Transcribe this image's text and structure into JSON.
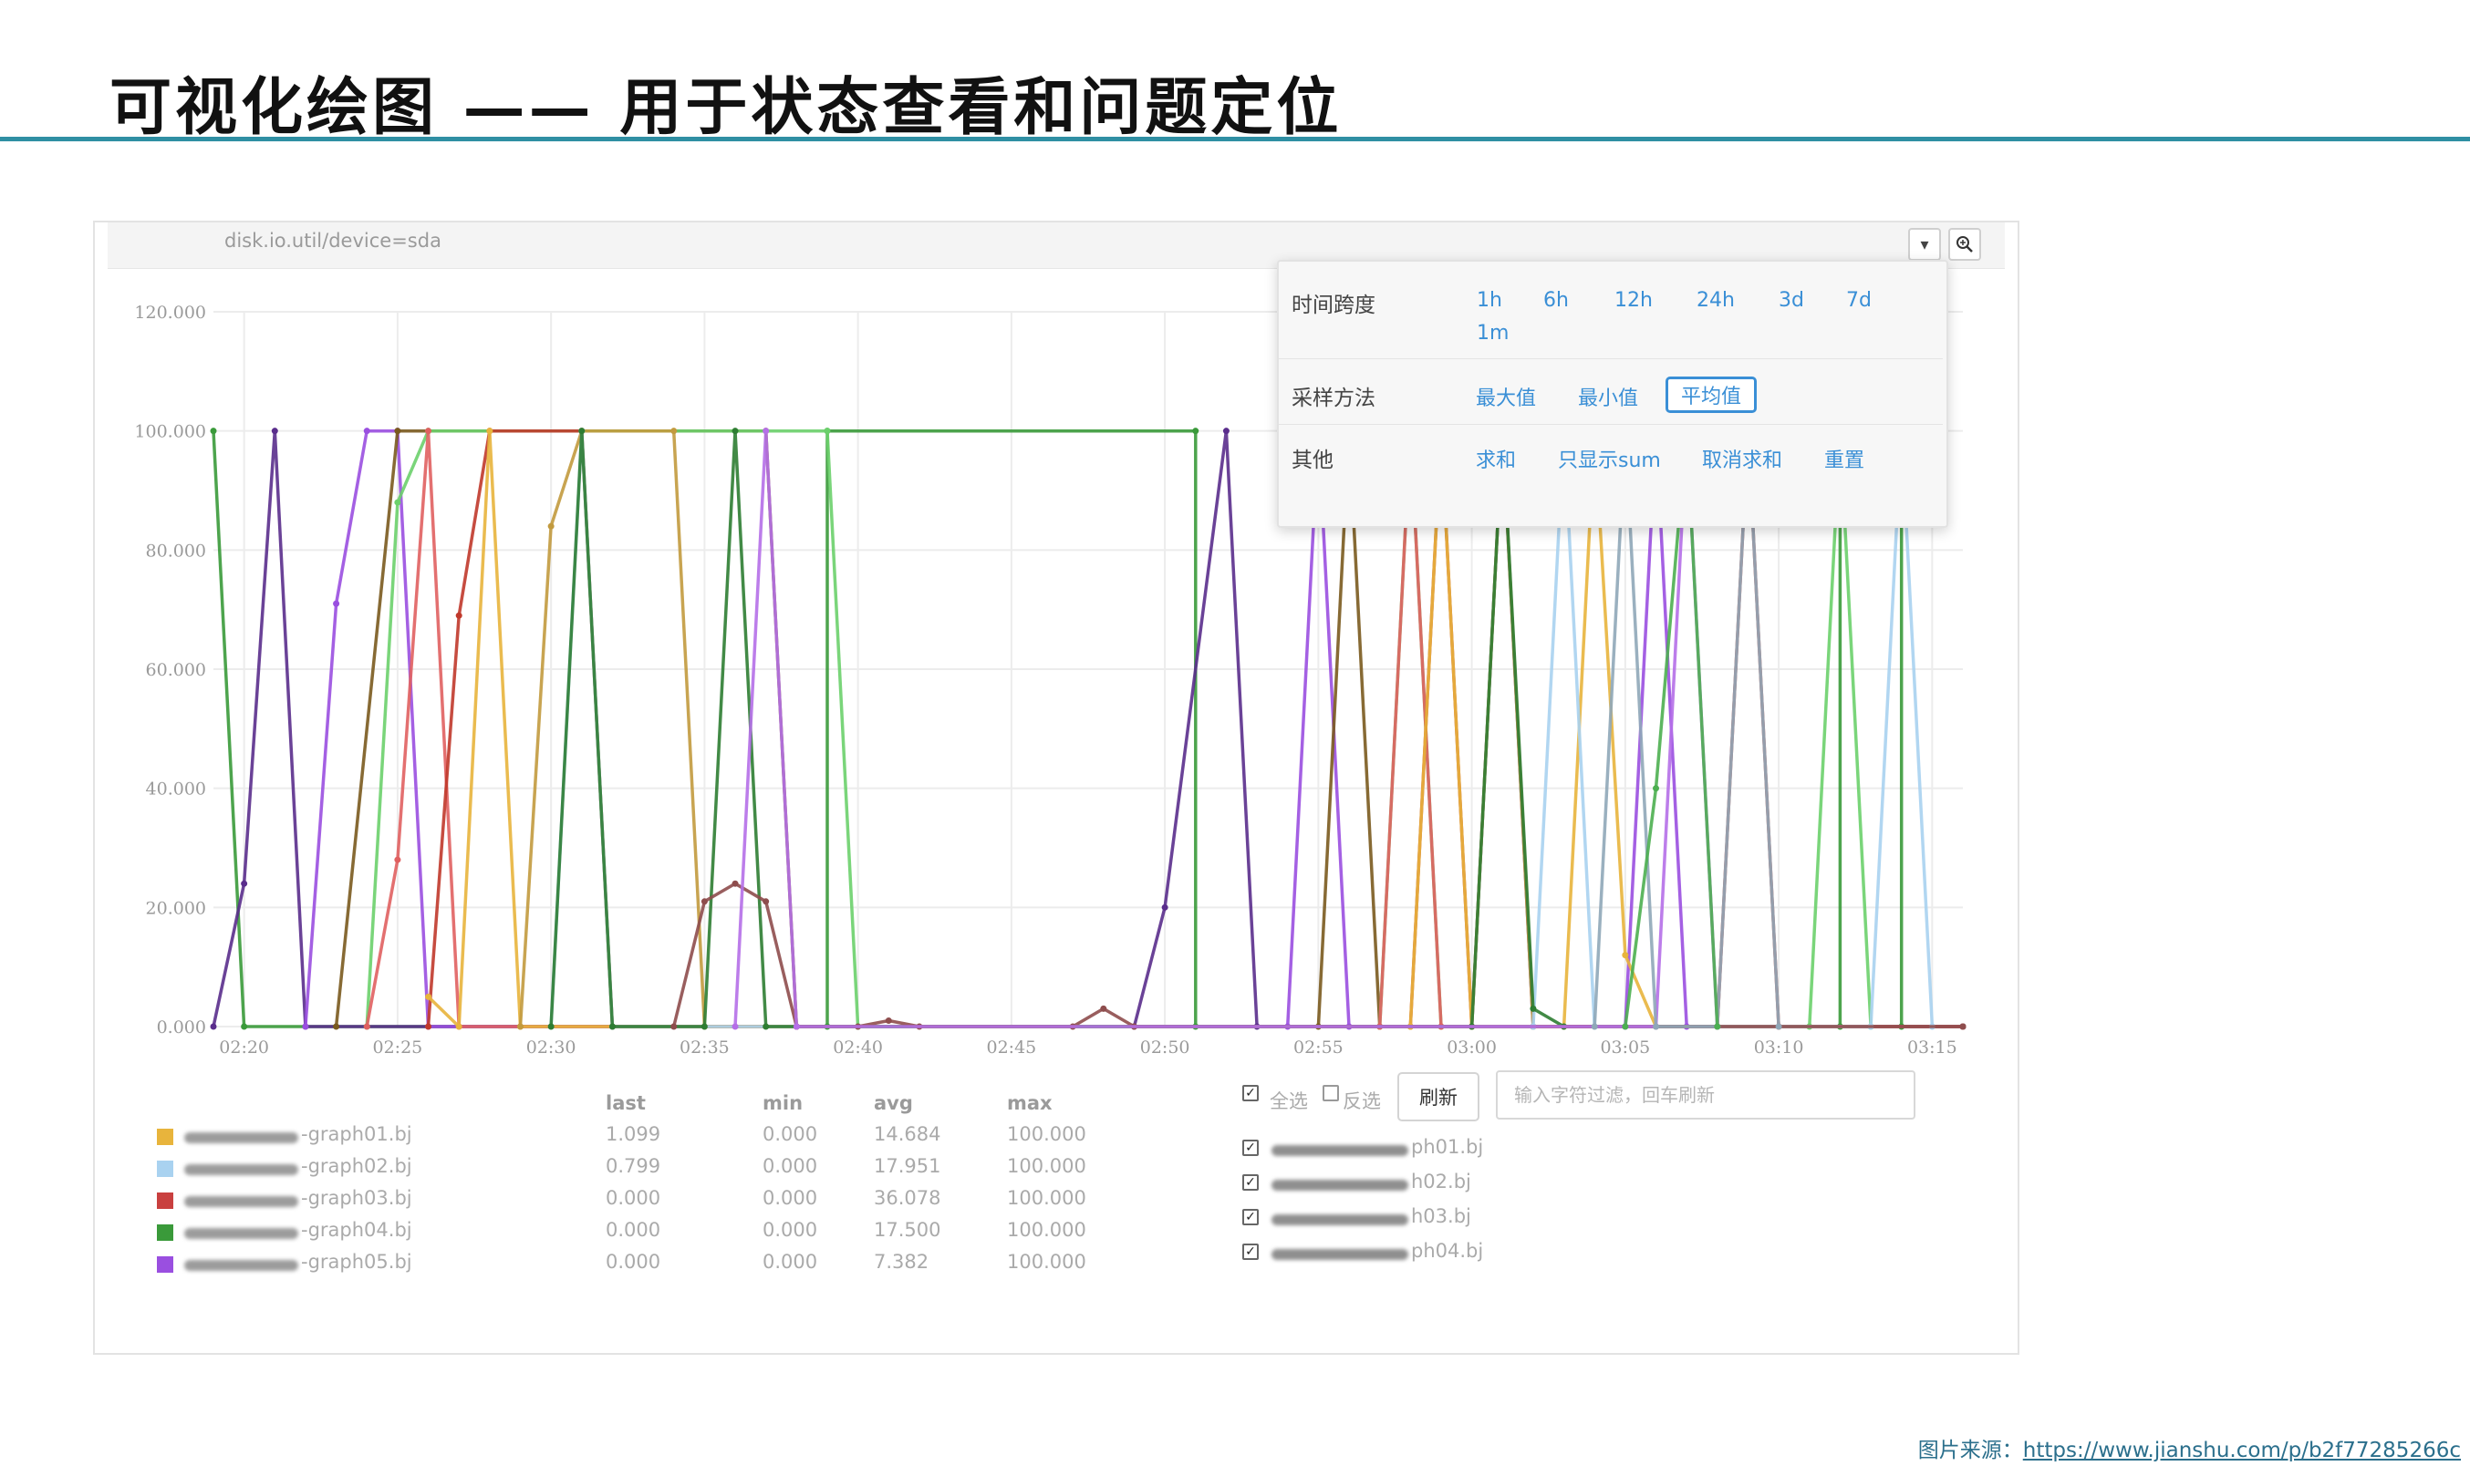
{
  "slide": {
    "title": "可视化绘图 —— 用于状态查看和问题定位"
  },
  "panel": {
    "metric": "disk.io.util/device=sda"
  },
  "popup": {
    "time_span_label": "时间跨度",
    "time_spans": [
      "1h",
      "6h",
      "12h",
      "24h",
      "3d",
      "7d",
      "1m"
    ],
    "sampling_label": "采样方法",
    "sampling": [
      "最大值",
      "最小值",
      "平均值"
    ],
    "sampling_active": "平均值",
    "other_label": "其他",
    "others": [
      "求和",
      "只显示sum",
      "取消求和",
      "重置"
    ]
  },
  "legend": {
    "headers": {
      "last": "last",
      "min": "min",
      "avg": "avg",
      "max": "max"
    },
    "rows": [
      {
        "name": "-graph01.bj",
        "color": "#e8b43c",
        "last": "1.099",
        "min": "0.000",
        "avg": "14.684",
        "max": "100.000"
      },
      {
        "name": "-graph02.bj",
        "color": "#a9d2f0",
        "last": "0.799",
        "min": "0.000",
        "avg": "17.951",
        "max": "100.000"
      },
      {
        "name": "-graph03.bj",
        "color": "#c9403f",
        "last": "0.000",
        "min": "0.000",
        "avg": "36.078",
        "max": "100.000"
      },
      {
        "name": "-graph04.bj",
        "color": "#3a9a3a",
        "last": "0.000",
        "min": "0.000",
        "avg": "17.500",
        "max": "100.000"
      },
      {
        "name": "-graph05.bj",
        "color": "#9a4fe0",
        "last": "0.000",
        "min": "0.000",
        "avg": "7.382",
        "max": "100.000"
      }
    ]
  },
  "filter": {
    "select_all": "全选",
    "invert": "反选",
    "refresh": "刷新",
    "placeholder": "输入字符过滤，回车刷新",
    "hosts": [
      "ph01.bj",
      "h02.bj",
      "h03.bj",
      "ph04.bj"
    ]
  },
  "source": {
    "label": "图片来源：",
    "url": "https://www.jianshu.com/p/b2f77285266c"
  },
  "chart_data": {
    "type": "line",
    "ylim": [
      0,
      120
    ],
    "y_ticks": [
      "120.000",
      "100.000",
      "80.000",
      "60.000",
      "40.000",
      "20.000",
      "0.000"
    ],
    "x_ticks": [
      "02:20",
      "02:25",
      "02:30",
      "02:35",
      "02:40",
      "02:45",
      "02:50",
      "02:55",
      "03:00",
      "03:05",
      "03:10",
      "03:15"
    ],
    "series": [
      {
        "color": "#3a9a3a",
        "points": [
          [
            "02:19",
            100
          ],
          [
            "02:20",
            0
          ],
          [
            "02:39",
            0
          ],
          [
            "02:39",
            100
          ],
          [
            "02:51",
            100
          ],
          [
            "02:51",
            0
          ],
          [
            "03:12",
            0
          ],
          [
            "03:12",
            100
          ],
          [
            "03:14",
            100
          ],
          [
            "03:14",
            0
          ],
          [
            "03:16",
            0
          ]
        ]
      },
      {
        "color": "#5a2d8c",
        "points": [
          [
            "02:19",
            0
          ],
          [
            "02:20",
            24
          ],
          [
            "02:21",
            100
          ],
          [
            "02:22",
            0
          ],
          [
            "02:49",
            0
          ],
          [
            "02:50",
            20
          ],
          [
            "02:52",
            100
          ],
          [
            "02:53",
            0
          ],
          [
            "03:00",
            0
          ],
          [
            "03:01",
            100
          ],
          [
            "03:02",
            0
          ],
          [
            "03:16",
            0
          ]
        ]
      },
      {
        "color": "#9a4fe0",
        "points": [
          [
            "02:22",
            0
          ],
          [
            "02:23",
            71
          ],
          [
            "02:24",
            100
          ],
          [
            "02:25",
            100
          ],
          [
            "02:26",
            0
          ],
          [
            "02:54",
            0
          ],
          [
            "02:55",
            100
          ],
          [
            "02:56",
            0
          ],
          [
            "03:05",
            0
          ],
          [
            "03:06",
            100
          ],
          [
            "03:07",
            0
          ],
          [
            "03:16",
            0
          ]
        ]
      },
      {
        "color": "#7a5a1e",
        "points": [
          [
            "02:23",
            0
          ],
          [
            "02:25",
            100
          ],
          [
            "02:37",
            100
          ],
          [
            "02:38",
            0
          ],
          [
            "02:55",
            0
          ],
          [
            "02:56",
            100
          ],
          [
            "02:57",
            0
          ],
          [
            "03:16",
            0
          ]
        ]
      },
      {
        "color": "#6bd06b",
        "points": [
          [
            "02:24",
            0
          ],
          [
            "02:25",
            88
          ],
          [
            "02:26",
            100
          ],
          [
            "02:39",
            100
          ],
          [
            "02:40",
            0
          ],
          [
            "02:57",
            0
          ],
          [
            "02:58",
            100
          ],
          [
            "02:59",
            0
          ],
          [
            "03:11",
            0
          ],
          [
            "03:12",
            100
          ],
          [
            "03:13",
            0
          ]
        ]
      },
      {
        "color": "#e06060",
        "points": [
          [
            "02:24",
            0
          ],
          [
            "02:25",
            28
          ],
          [
            "02:26",
            100
          ],
          [
            "02:27",
            0
          ],
          [
            "02:57",
            0
          ],
          [
            "02:58",
            100
          ],
          [
            "02:59",
            0
          ],
          [
            "03:16",
            0
          ]
        ]
      },
      {
        "color": "#c0392b",
        "points": [
          [
            "02:26",
            0
          ],
          [
            "02:27",
            69
          ],
          [
            "02:28",
            100
          ],
          [
            "02:31",
            100
          ],
          [
            "02:32",
            0
          ],
          [
            "02:58",
            0
          ],
          [
            "02:59",
            100
          ],
          [
            "03:00",
            0
          ],
          [
            "03:08",
            0
          ],
          [
            "03:09",
            100
          ],
          [
            "03:10",
            0
          ]
        ]
      },
      {
        "color": "#e8b43c",
        "points": [
          [
            "02:26",
            5
          ],
          [
            "02:27",
            0
          ],
          [
            "02:28",
            100
          ],
          [
            "02:29",
            0
          ],
          [
            "02:58",
            0
          ],
          [
            "02:59",
            100
          ],
          [
            "03:00",
            0
          ],
          [
            "03:03",
            0
          ],
          [
            "03:04",
            100
          ],
          [
            "03:05",
            12
          ],
          [
            "03:06",
            0
          ]
        ]
      },
      {
        "color": "#c29a3e",
        "points": [
          [
            "02:29",
            0
          ],
          [
            "02:30",
            84
          ],
          [
            "02:31",
            100
          ],
          [
            "02:34",
            100
          ],
          [
            "02:35",
            0
          ],
          [
            "03:00",
            0
          ],
          [
            "03:01",
            100
          ],
          [
            "03:02",
            0
          ]
        ]
      },
      {
        "color": "#a9d2f0",
        "points": [
          [
            "02:30",
            0
          ],
          [
            "02:31",
            100
          ],
          [
            "02:32",
            0
          ],
          [
            "03:02",
            0
          ],
          [
            "03:03",
            100
          ],
          [
            "03:04",
            0
          ],
          [
            "03:13",
            0
          ],
          [
            "03:14",
            100
          ],
          [
            "03:15",
            0
          ]
        ]
      },
      {
        "color": "#2e7d32",
        "points": [
          [
            "02:30",
            0
          ],
          [
            "02:31",
            100
          ],
          [
            "02:32",
            0
          ],
          [
            "02:35",
            0
          ],
          [
            "02:36",
            100
          ],
          [
            "02:37",
            0
          ],
          [
            "03:00",
            0
          ],
          [
            "03:01",
            100
          ],
          [
            "03:02",
            3
          ],
          [
            "03:03",
            0
          ]
        ]
      },
      {
        "color": "#8e4d4d",
        "points": [
          [
            "02:34",
            0
          ],
          [
            "02:35",
            21
          ],
          [
            "02:36",
            24
          ],
          [
            "02:37",
            21
          ],
          [
            "02:38",
            0
          ],
          [
            "02:40",
            0
          ],
          [
            "02:41",
            1
          ],
          [
            "02:42",
            0
          ],
          [
            "02:47",
            0
          ],
          [
            "02:48",
            3
          ],
          [
            "02:49",
            0
          ],
          [
            "03:16",
            0
          ]
        ]
      },
      {
        "color": "#b56fe8",
        "points": [
          [
            "02:36",
            0
          ],
          [
            "02:37",
            100
          ],
          [
            "02:38",
            0
          ],
          [
            "03:06",
            0
          ],
          [
            "03:07",
            100
          ],
          [
            "03:08",
            0
          ]
        ]
      },
      {
        "color": "#8fa7b8",
        "points": [
          [
            "03:04",
            0
          ],
          [
            "03:05",
            100
          ],
          [
            "03:06",
            0
          ],
          [
            "03:08",
            0
          ],
          [
            "03:09",
            100
          ],
          [
            "03:10",
            0
          ]
        ]
      },
      {
        "color": "#4caf50",
        "points": [
          [
            "03:05",
            0
          ],
          [
            "03:06",
            40
          ],
          [
            "03:07",
            100
          ],
          [
            "03:08",
            0
          ]
        ]
      }
    ]
  }
}
